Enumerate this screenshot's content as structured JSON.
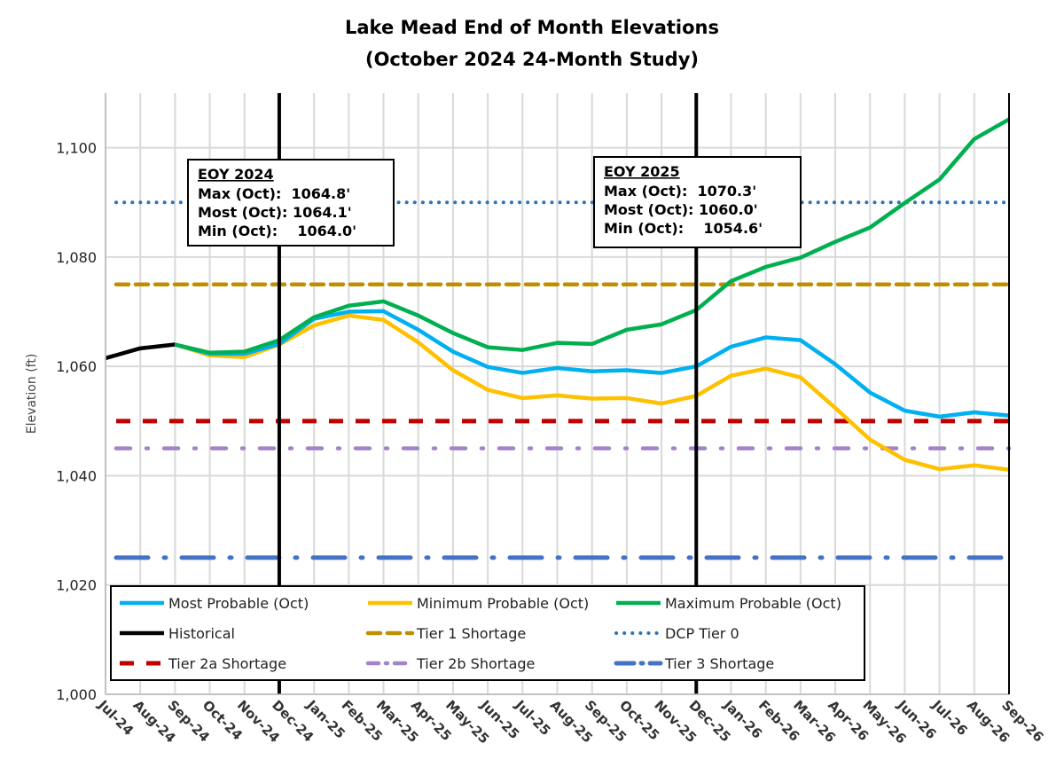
{
  "chart_data": {
    "type": "line",
    "title": "Lake Mead End of Month Elevations",
    "subtitle": "(October 2024 24-Month Study)",
    "xlabel": "",
    "ylabel": "Elevation (ft)",
    "ylim": [
      1000,
      1110
    ],
    "yticks": [
      1000,
      1020,
      1040,
      1060,
      1080,
      1100
    ],
    "ytick_labels": [
      "1,000",
      "1,020",
      "1,040",
      "1,060",
      "1,080",
      "1,100"
    ],
    "grid": true,
    "legend_position": "bottom-inside",
    "categories": [
      "Jul-24",
      "Aug-24",
      "Sep-24",
      "Oct-24",
      "Nov-24",
      "Dec-24",
      "Jan-25",
      "Feb-25",
      "Mar-25",
      "Apr-25",
      "May-25",
      "Jun-25",
      "Jul-25",
      "Aug-25",
      "Sep-25",
      "Oct-25",
      "Nov-25",
      "Dec-25",
      "Jan-26",
      "Feb-26",
      "Mar-26",
      "Apr-26",
      "May-26",
      "Jun-26",
      "Jul-26",
      "Aug-26",
      "Sep-26"
    ],
    "series": [
      {
        "name": "Most Probable (Oct)",
        "color": "#00B0F0",
        "style": "solid",
        "values": [
          null,
          null,
          1064.0,
          1062.3,
          1062.3,
          1064.1,
          1068.7,
          1070.0,
          1070.1,
          1066.7,
          1062.7,
          1059.9,
          1058.8,
          1059.7,
          1059.1,
          1059.3,
          1058.8,
          1060.0,
          1063.6,
          1065.3,
          1064.8,
          1060.4,
          1055.2,
          1051.9,
          1050.8,
          1051.6,
          1051.0
        ]
      },
      {
        "name": "Minimum Probable (Oct)",
        "color": "#FFC000",
        "style": "solid",
        "values": [
          null,
          null,
          1064.0,
          1062.0,
          1061.7,
          1064.0,
          1067.5,
          1069.3,
          1068.5,
          1064.4,
          1059.3,
          1055.7,
          1054.2,
          1054.7,
          1054.1,
          1054.2,
          1053.2,
          1054.6,
          1058.3,
          1059.6,
          1058.0,
          1052.4,
          1046.6,
          1042.9,
          1041.2,
          1041.9,
          1041.1
        ]
      },
      {
        "name": "Maximum Probable (Oct)",
        "color": "#00B050",
        "style": "solid",
        "values": [
          null,
          null,
          1064.0,
          1062.5,
          1062.7,
          1064.8,
          1069.0,
          1071.1,
          1071.9,
          1069.3,
          1066.1,
          1063.5,
          1063.0,
          1064.3,
          1064.1,
          1066.7,
          1067.7,
          1070.3,
          1075.6,
          1078.2,
          1079.9,
          1082.8,
          1085.4,
          1089.9,
          1094.2,
          1101.6,
          1105.2
        ]
      },
      {
        "name": "Historical",
        "color": "#000000",
        "style": "solid",
        "values": [
          1061.5,
          1063.3,
          1064.0,
          null,
          null,
          null,
          null,
          null,
          null,
          null,
          null,
          null,
          null,
          null,
          null,
          null,
          null,
          null,
          null,
          null,
          null,
          null,
          null,
          null,
          null,
          null,
          null
        ]
      },
      {
        "name": "Tier 1 Shortage",
        "color": "#BF8F00",
        "style": "dashed",
        "constant": 1075
      },
      {
        "name": "DCP Tier 0",
        "color": "#2E75B6",
        "style": "dotted",
        "constant": 1090
      },
      {
        "name": "Tier 2a Shortage",
        "color": "#C00000",
        "style": "dashed",
        "constant": 1050
      },
      {
        "name": "Tier 2b Shortage",
        "color": "#A384C8",
        "style": "dash-dot",
        "constant": 1045
      },
      {
        "name": "Tier 3 Shortage",
        "color": "#4472C4",
        "style": "long-dash-dot",
        "constant": 1025
      }
    ],
    "vertical_markers": [
      "Dec-24",
      "Dec-25"
    ],
    "annotations": [
      {
        "at": "Dec-24",
        "heading": "EOY 2024",
        "lines": [
          "Max (Oct):  1064.8'",
          "Most (Oct): 1064.1'",
          "Min (Oct):    1064.0'"
        ]
      },
      {
        "at": "Dec-25",
        "heading": "EOY 2025",
        "lines": [
          "Max (Oct):  1070.3'",
          "Most (Oct): 1060.0'",
          "Min (Oct):    1054.6'"
        ]
      }
    ]
  }
}
